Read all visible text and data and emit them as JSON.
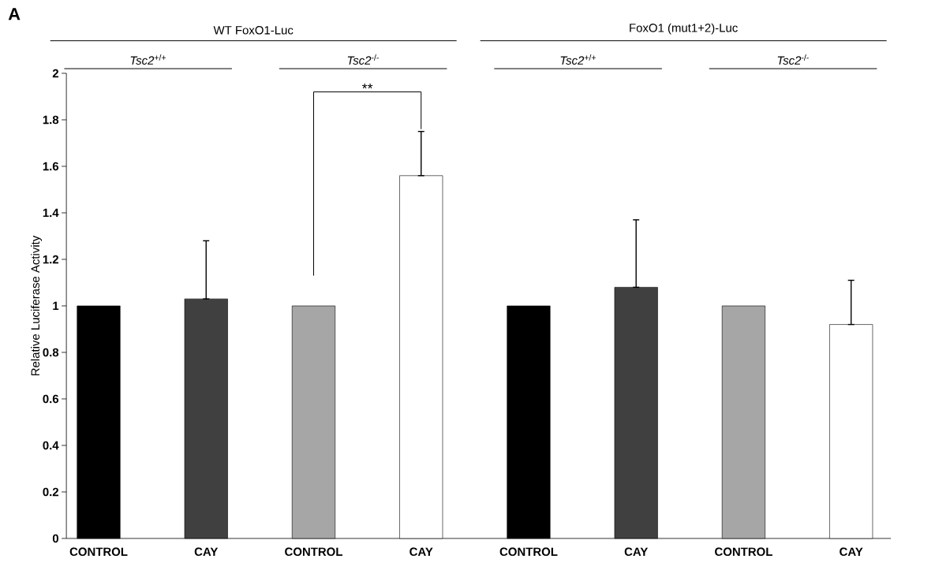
{
  "chart_data": {
    "type": "bar",
    "categories": [
      "CONTROL",
      "CAY",
      "CONTROL",
      "CAY",
      "CONTROL",
      "CAY",
      "CONTROL",
      "CAY"
    ],
    "values": [
      1,
      1.03,
      1,
      1.56,
      1,
      1.08,
      1,
      0.92
    ],
    "colors": [
      "#000000",
      "#404040",
      "#a6a6a6",
      "#ffffff",
      "#000000",
      "#404040",
      "#a6a6a6",
      "#ffffff"
    ],
    "errors": [
      null,
      [
        1.03,
        1.28
      ],
      null,
      [
        1.56,
        1.75
      ],
      null,
      [
        1.08,
        1.37
      ],
      null,
      [
        0.92,
        1.11
      ]
    ],
    "ylabel": "Relative Luciferase Activity",
    "ylim": [
      0,
      2
    ],
    "yticks": [
      0,
      0.2,
      0.4,
      0.6,
      0.8,
      1,
      1.2,
      1.4,
      1.6,
      1.8,
      2
    ],
    "annotations": [
      "A",
      "WT FoxO1-Luc",
      "FoxO1 (mut1+2)-Luc",
      "*Tsc2*$^{+/+}$",
      "*Tsc2*$^{-/-}$",
      "*Tsc2*$^{+/+}$",
      "*Tsc2*$^{-/-}$",
      "**"
    ]
  }
}
